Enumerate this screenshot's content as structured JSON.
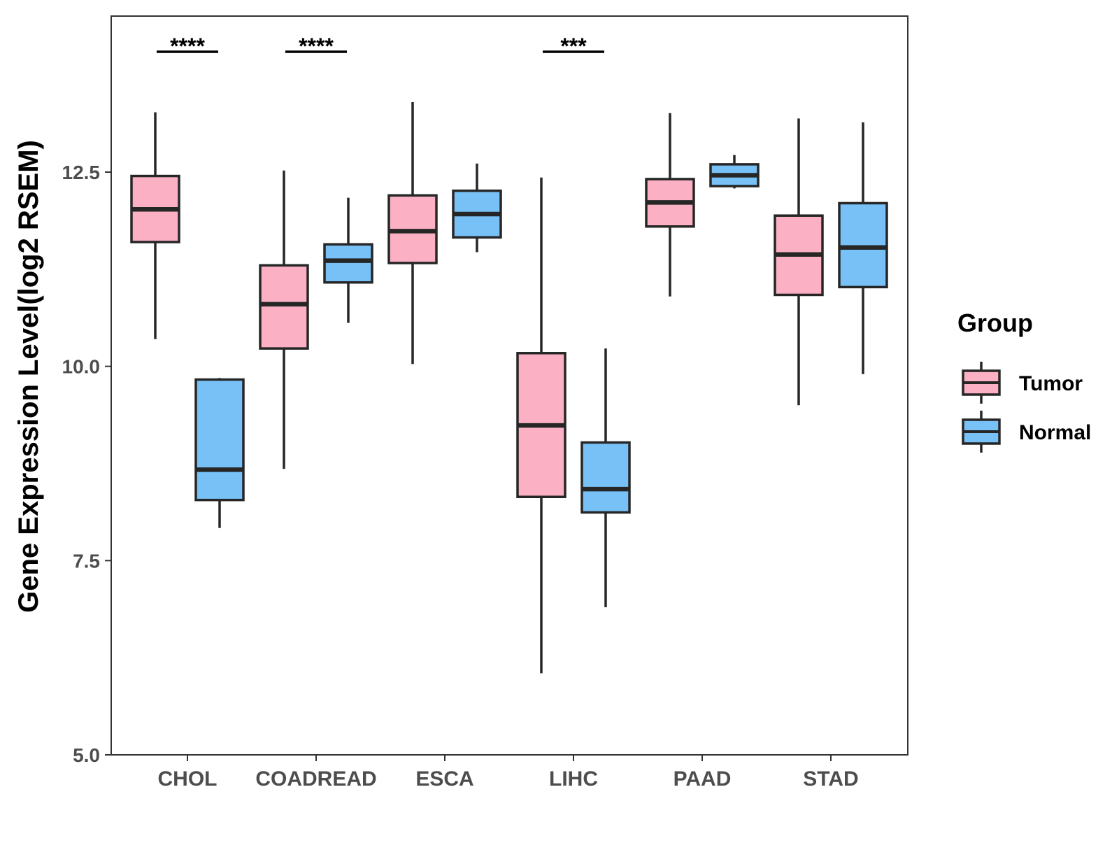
{
  "chart_data": {
    "type": "boxplot",
    "title": "",
    "xlabel": "",
    "ylabel": "Gene Expression Level(log2 RSEM)",
    "ylim": [
      5.0,
      14.5
    ],
    "yticks": [
      5.0,
      7.5,
      10.0,
      12.5
    ],
    "ytick_labels": [
      "5.0",
      "7.5",
      "10.0",
      "12.5"
    ],
    "categories": [
      "CHOL",
      "COADREAD",
      "ESCA",
      "LIHC",
      "PAAD",
      "STAD"
    ],
    "legend": {
      "title": "Group",
      "position": "right"
    },
    "series": [
      {
        "name": "Tumor",
        "color": "#FBB1C3",
        "boxes": [
          {
            "category": "CHOL",
            "whisker_low": 10.35,
            "q1": 11.6,
            "median": 12.02,
            "q3": 12.45,
            "whisker_high": 13.27
          },
          {
            "category": "COADREAD",
            "whisker_low": 8.68,
            "q1": 10.23,
            "median": 10.8,
            "q3": 11.3,
            "whisker_high": 12.52
          },
          {
            "category": "ESCA",
            "whisker_low": 10.03,
            "q1": 11.33,
            "median": 11.74,
            "q3": 12.2,
            "whisker_high": 13.4
          },
          {
            "category": "LIHC",
            "whisker_low": 6.05,
            "q1": 8.32,
            "median": 9.24,
            "q3": 10.17,
            "whisker_high": 12.43
          },
          {
            "category": "PAAD",
            "whisker_low": 10.9,
            "q1": 11.8,
            "median": 12.11,
            "q3": 12.41,
            "whisker_high": 13.26
          },
          {
            "category": "STAD",
            "whisker_low": 9.5,
            "q1": 10.92,
            "median": 11.44,
            "q3": 11.94,
            "whisker_high": 13.19
          }
        ]
      },
      {
        "name": "Normal",
        "color": "#77C1F7",
        "boxes": [
          {
            "category": "CHOL",
            "whisker_low": 7.92,
            "q1": 8.28,
            "median": 8.67,
            "q3": 9.83,
            "whisker_high": 9.85
          },
          {
            "category": "COADREAD",
            "whisker_low": 10.56,
            "q1": 11.08,
            "median": 11.36,
            "q3": 11.57,
            "whisker_high": 12.17
          },
          {
            "category": "ESCA",
            "whisker_low": 11.47,
            "q1": 11.66,
            "median": 11.96,
            "q3": 12.26,
            "whisker_high": 12.61
          },
          {
            "category": "LIHC",
            "whisker_low": 6.9,
            "q1": 8.12,
            "median": 8.42,
            "q3": 9.02,
            "whisker_high": 10.23
          },
          {
            "category": "PAAD",
            "whisker_low": 12.29,
            "q1": 12.32,
            "median": 12.46,
            "q3": 12.6,
            "whisker_high": 12.72
          },
          {
            "category": "STAD",
            "whisker_low": 9.9,
            "q1": 11.02,
            "median": 11.53,
            "q3": 12.1,
            "whisker_high": 13.14
          }
        ]
      }
    ],
    "annotations": [
      {
        "category": "CHOL",
        "text": "****",
        "y": 14.1
      },
      {
        "category": "COADREAD",
        "text": "****",
        "y": 14.1
      },
      {
        "category": "LIHC",
        "text": "***",
        "y": 14.1
      }
    ]
  },
  "colors": {
    "outline": "#262626",
    "panel_border": "#333333",
    "background": "#ffffff"
  }
}
